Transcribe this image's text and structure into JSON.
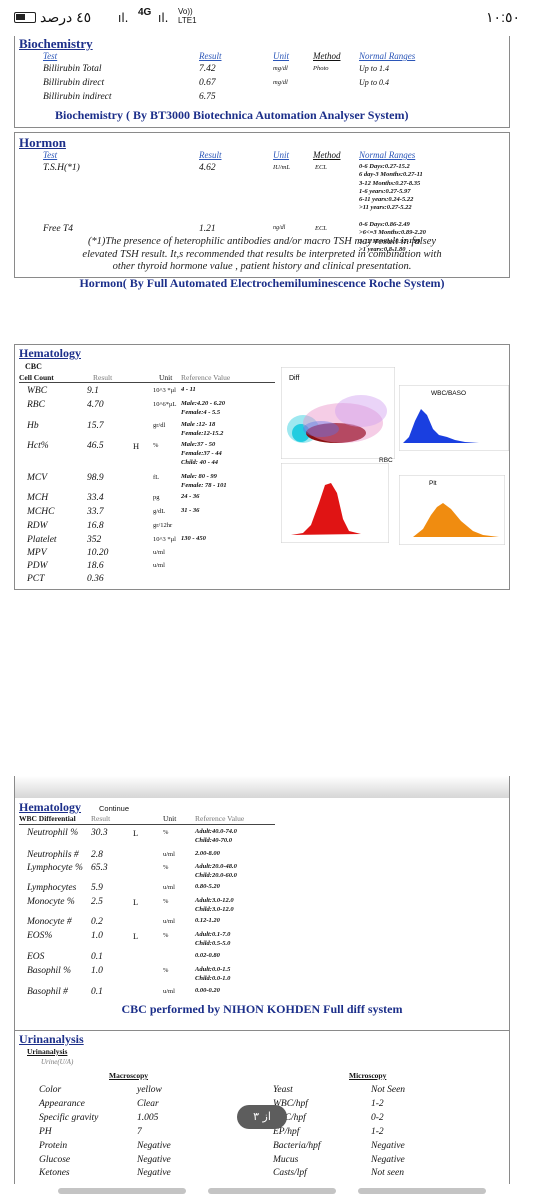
{
  "status_bar": {
    "time": "١٠:٥٠",
    "battery": "٤٥ درصد",
    "network_tag": "4G",
    "lte_tag": "Vo)) LTE1"
  },
  "biochem": {
    "title": "Biochemistry",
    "col_test": "Test",
    "col_result": "Result",
    "col_unit": "Unit",
    "col_method": "Method",
    "col_range": "Normal Ranges",
    "rows": [
      {
        "test": "Billirubin Total",
        "result": "7.42",
        "unit": "mg/dl",
        "method": "Photo",
        "range": "Up to 1.4"
      },
      {
        "test": "Billirubin direct",
        "result": "0.67",
        "unit": "mg/dl",
        "method": "",
        "range": "Up to 0.4"
      },
      {
        "test": "Billirubin indirect",
        "result": "6.75",
        "unit": "",
        "method": "",
        "range": ""
      }
    ],
    "footer": "Biochemistry ( By BT3000 Biotechnica Automation Analyser System)"
  },
  "hormon": {
    "title": "Hormon",
    "col_test": "Test",
    "col_result": "Result",
    "col_unit": "Unit",
    "col_method": "Method",
    "col_range": "Normal Ranges",
    "tsh": {
      "test": "T.S.H(*1)",
      "result": "4.62",
      "unit": "IU/mL",
      "method": "ECL",
      "ranges": [
        "0-6 Days:0.27-15.2",
        "6 day-3 Months:0.27-11",
        "3-12 Months:0.27-8.35",
        "1-6 years:0.27-5.97",
        "6-11 years:0.24-5.22",
        ">11 years:0.27-5.22"
      ]
    },
    "t4": {
      "test": "Free T4",
      "result": "1.21",
      "unit": "ng/dl",
      "method": "ECL",
      "ranges": [
        "0-6 Days:0.86-2.49",
        ">6<=3 Months:0.89-2.20",
        "3-12 Months:0.92-1.99",
        ">1 years:0.8-1.80"
      ]
    },
    "note1": "(*1)The presence of heterophilic antibodies and/or macro TSH may result in falsey",
    "note2": "elevated TSH result. It,s recommended that results be interpreted in combination with",
    "note3": "other thyroid hormone value , patient history and clinical presentation.",
    "footer": "Hormon( By Full Automated Electrochemiluminescence Roche System)"
  },
  "hematology": {
    "title": "Hematology",
    "subtitle": "CBC",
    "col_cell": "Cell Count",
    "col_result": "Result",
    "col_unit": "Unit",
    "col_ref": "Reference Value",
    "rows": [
      {
        "name": "WBC",
        "result": "9.1",
        "flag": "",
        "unit": "10^3 *μl",
        "ref": "4 - 11"
      },
      {
        "name": "RBC",
        "result": "4.70",
        "flag": "",
        "unit": "10^6*μL",
        "ref": "Male:4.20 - 6.20",
        "ref2": "Female:4 - 5.5"
      },
      {
        "name": "Hb",
        "result": "15.7",
        "flag": "",
        "unit": "gr/dl",
        "ref": "Male :12- 18",
        "ref2": "Female:12-15.2"
      },
      {
        "name": "Hct%",
        "result": "46.5",
        "flag": "H",
        "unit": "%",
        "ref": "Male:37 - 50",
        "ref2": "Female:37 - 44",
        "ref3": "Child: 40 - 44"
      },
      {
        "name": "MCV",
        "result": "98.9",
        "flag": "",
        "unit": "fL",
        "ref": "Male: 80 - 99",
        "ref2": "Female: 78 - 101"
      },
      {
        "name": "MCH",
        "result": "33.4",
        "flag": "",
        "unit": "pg",
        "ref": "24 - 36"
      },
      {
        "name": "MCHC",
        "result": "33.7",
        "flag": "",
        "unit": "g/dL",
        "ref": "31 - 36"
      },
      {
        "name": "RDW",
        "result": "16.8",
        "flag": "",
        "unit": "gr/12hr",
        "ref": ""
      },
      {
        "name": "Platelet",
        "result": "352",
        "flag": "",
        "unit": "10^3 *μl",
        "ref": "130 - 450"
      },
      {
        "name": "MPV",
        "result": "10.20",
        "flag": "",
        "unit": "u/ml",
        "ref": ""
      },
      {
        "name": "PDW",
        "result": "18.6",
        "flag": "",
        "unit": "u/ml",
        "ref": ""
      },
      {
        "name": "PCT",
        "result": "0.36",
        "flag": "",
        "unit": "",
        "ref": ""
      }
    ],
    "chart_diff": "Diff",
    "chart_wbc": "WBC/BASO",
    "chart_rbc": "RBC",
    "chart_plt": "Plt",
    "colors": {
      "blue": "#1a3fe0",
      "red": "#e01414",
      "orange": "#f08c10",
      "cyan": "#22cce0",
      "darkred": "#8a1010",
      "pink": "#e890c8"
    }
  },
  "hema2": {
    "title": "Hematology",
    "continue": "Continue",
    "col_name": "WBC Differential",
    "col_result": "Result",
    "col_unit": "Unit",
    "col_ref": "Reference Value",
    "rows": [
      {
        "name": "Neutrophil %",
        "result": "30.3",
        "flag": "L",
        "unit": "%",
        "ref": "Adult:40.0-74.0",
        "ref2": "Child:40-70.0"
      },
      {
        "name": "Neutrophils #",
        "result": "2.8",
        "flag": "",
        "unit": "u/ml",
        "ref": "2.00-8.00"
      },
      {
        "name": "Lymphocyte %",
        "result": "65.3",
        "flag": "",
        "unit": "%",
        "ref": "Adult:20.0-48.0",
        "ref2": "Child:20.0-60.0"
      },
      {
        "name": "Lymphocytes",
        "result": "5.9",
        "flag": "",
        "unit": "u/ml",
        "ref": "0.80-5.20"
      },
      {
        "name": "Monocyte %",
        "result": "2.5",
        "flag": "L",
        "unit": "%",
        "ref": "Adult:3.0-12.0",
        "ref2": "Child:3.0-12.0"
      },
      {
        "name": "Monocyte #",
        "result": "0.2",
        "flag": "",
        "unit": "u/ml",
        "ref": "0.12-1.20"
      },
      {
        "name": "EOS%",
        "result": "1.0",
        "flag": "L",
        "unit": "%",
        "ref": "Adult:0.1-7.0",
        "ref2": "Child:0.5-5.0"
      },
      {
        "name": "EOS",
        "result": "0.1",
        "flag": "",
        "unit": "",
        "ref": "0.02-0.80"
      },
      {
        "name": "Basophil %",
        "result": "1.0",
        "flag": "",
        "unit": "%",
        "ref": "Adult:0.0-1.5",
        "ref2": "Child:0.0-1.0"
      },
      {
        "name": "Basophil #",
        "result": "0.1",
        "flag": "",
        "unit": "u/ml",
        "ref": "0.00-0.20"
      }
    ],
    "footer": "CBC performed by NIHON KOHDEN Full diff system"
  },
  "urine": {
    "title": "Urinanalysis",
    "subtitle": "Urinanalysis",
    "sub2": "Urine(U/A)",
    "macro_header": "Macroscopy",
    "micro_header": "Microscopy",
    "macro": [
      {
        "name": "Color",
        "value": "yellow"
      },
      {
        "name": "Appearance",
        "value": "Clear"
      },
      {
        "name": "Specific gravity",
        "value": "1.005"
      },
      {
        "name": "PH",
        "value": "7"
      },
      {
        "name": "Protein",
        "value": "Negative"
      },
      {
        "name": "Glucose",
        "value": "Negative"
      },
      {
        "name": "Ketones",
        "value": "Negative"
      }
    ],
    "micro": [
      {
        "name": "Yeast",
        "value": "Not Seen"
      },
      {
        "name": "WBC/hpf",
        "value": "1-2"
      },
      {
        "name": "RBC/hpf",
        "value": "0-2"
      },
      {
        "name": "EP/hpf",
        "value": "1-2"
      },
      {
        "name": "Bacteria/hpf",
        "value": "Negative"
      },
      {
        "name": "Mucus",
        "value": "Negative"
      },
      {
        "name": "Casts/lpf",
        "value": "Not seen"
      }
    ],
    "page_badge": "۳ از"
  }
}
